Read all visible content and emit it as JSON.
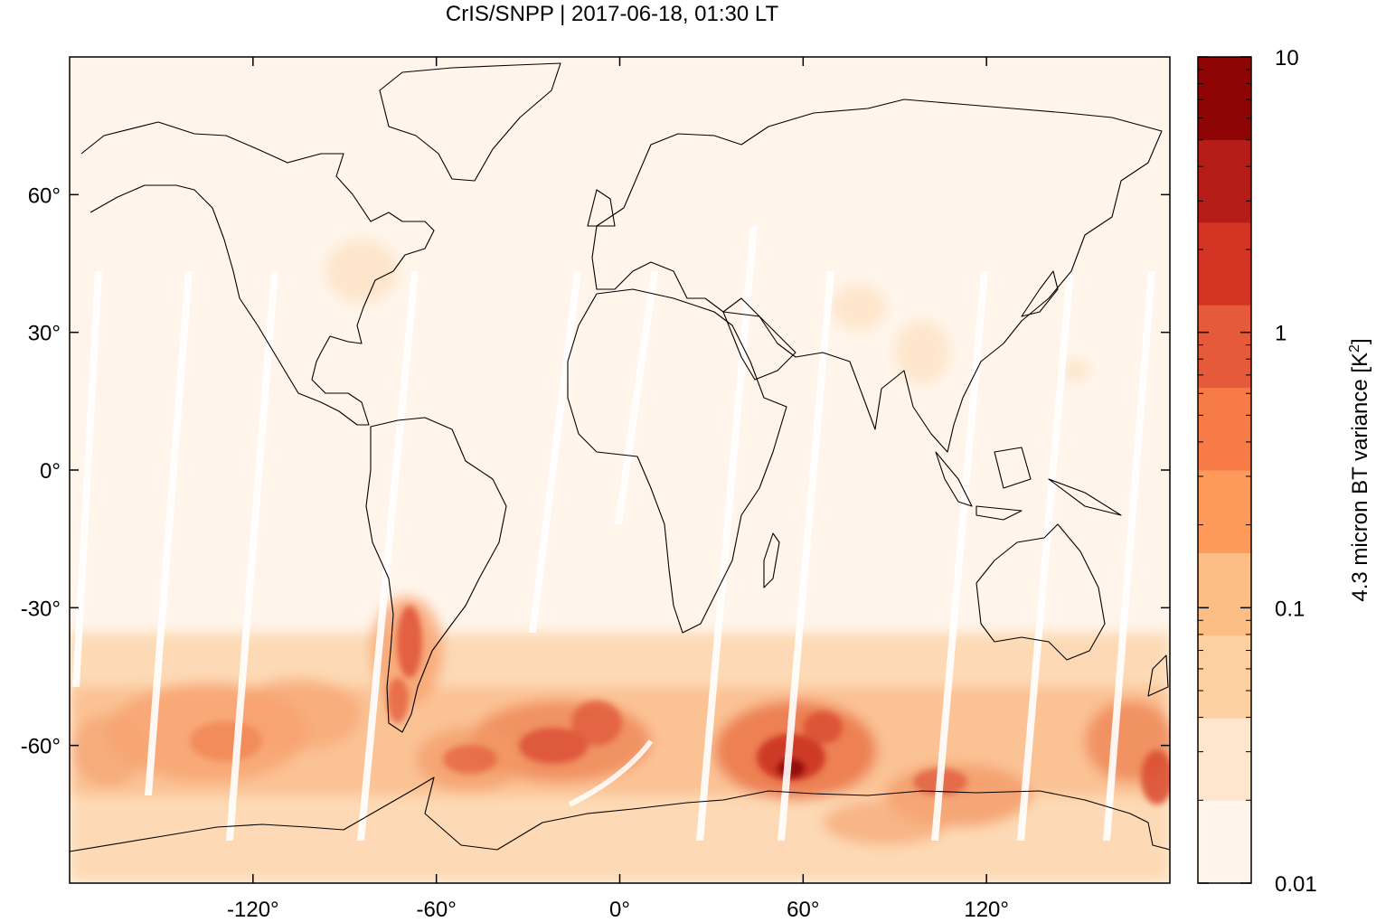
{
  "title": "CrIS/SNPP | 2017-06-18, 01:30 LT",
  "map": {
    "lon_range": [
      -180,
      180
    ],
    "lat_range": [
      -90,
      90
    ],
    "x_ticks": [
      {
        "value": -120,
        "label": "-120°"
      },
      {
        "value": -60,
        "label": "-60°"
      },
      {
        "value": 0,
        "label": "0°"
      },
      {
        "value": 60,
        "label": "60°"
      },
      {
        "value": 120,
        "label": "120°"
      }
    ],
    "y_ticks": [
      {
        "value": 60,
        "label": "60°"
      },
      {
        "value": 30,
        "label": "30°"
      },
      {
        "value": 0,
        "label": "0°"
      },
      {
        "value": -30,
        "label": "-30°"
      },
      {
        "value": -60,
        "label": "-60°"
      }
    ]
  },
  "colorbar": {
    "label_main": "4.3 micron BT variance [K",
    "label_sup": "2",
    "label_end": "]",
    "scale": "log",
    "range": [
      0.01,
      10
    ],
    "ticks": [
      {
        "value": 10,
        "label": "10"
      },
      {
        "value": 1,
        "label": "1"
      },
      {
        "value": 0.1,
        "label": "0.1"
      },
      {
        "value": 0.01,
        "label": "0.01"
      }
    ],
    "colors": [
      "#fff5eb",
      "#fee6ce",
      "#fdd0a2",
      "#fdbe85",
      "#fd9a5b",
      "#f67b46",
      "#e45a3a",
      "#d33424",
      "#b51d18",
      "#8f0505"
    ]
  }
}
